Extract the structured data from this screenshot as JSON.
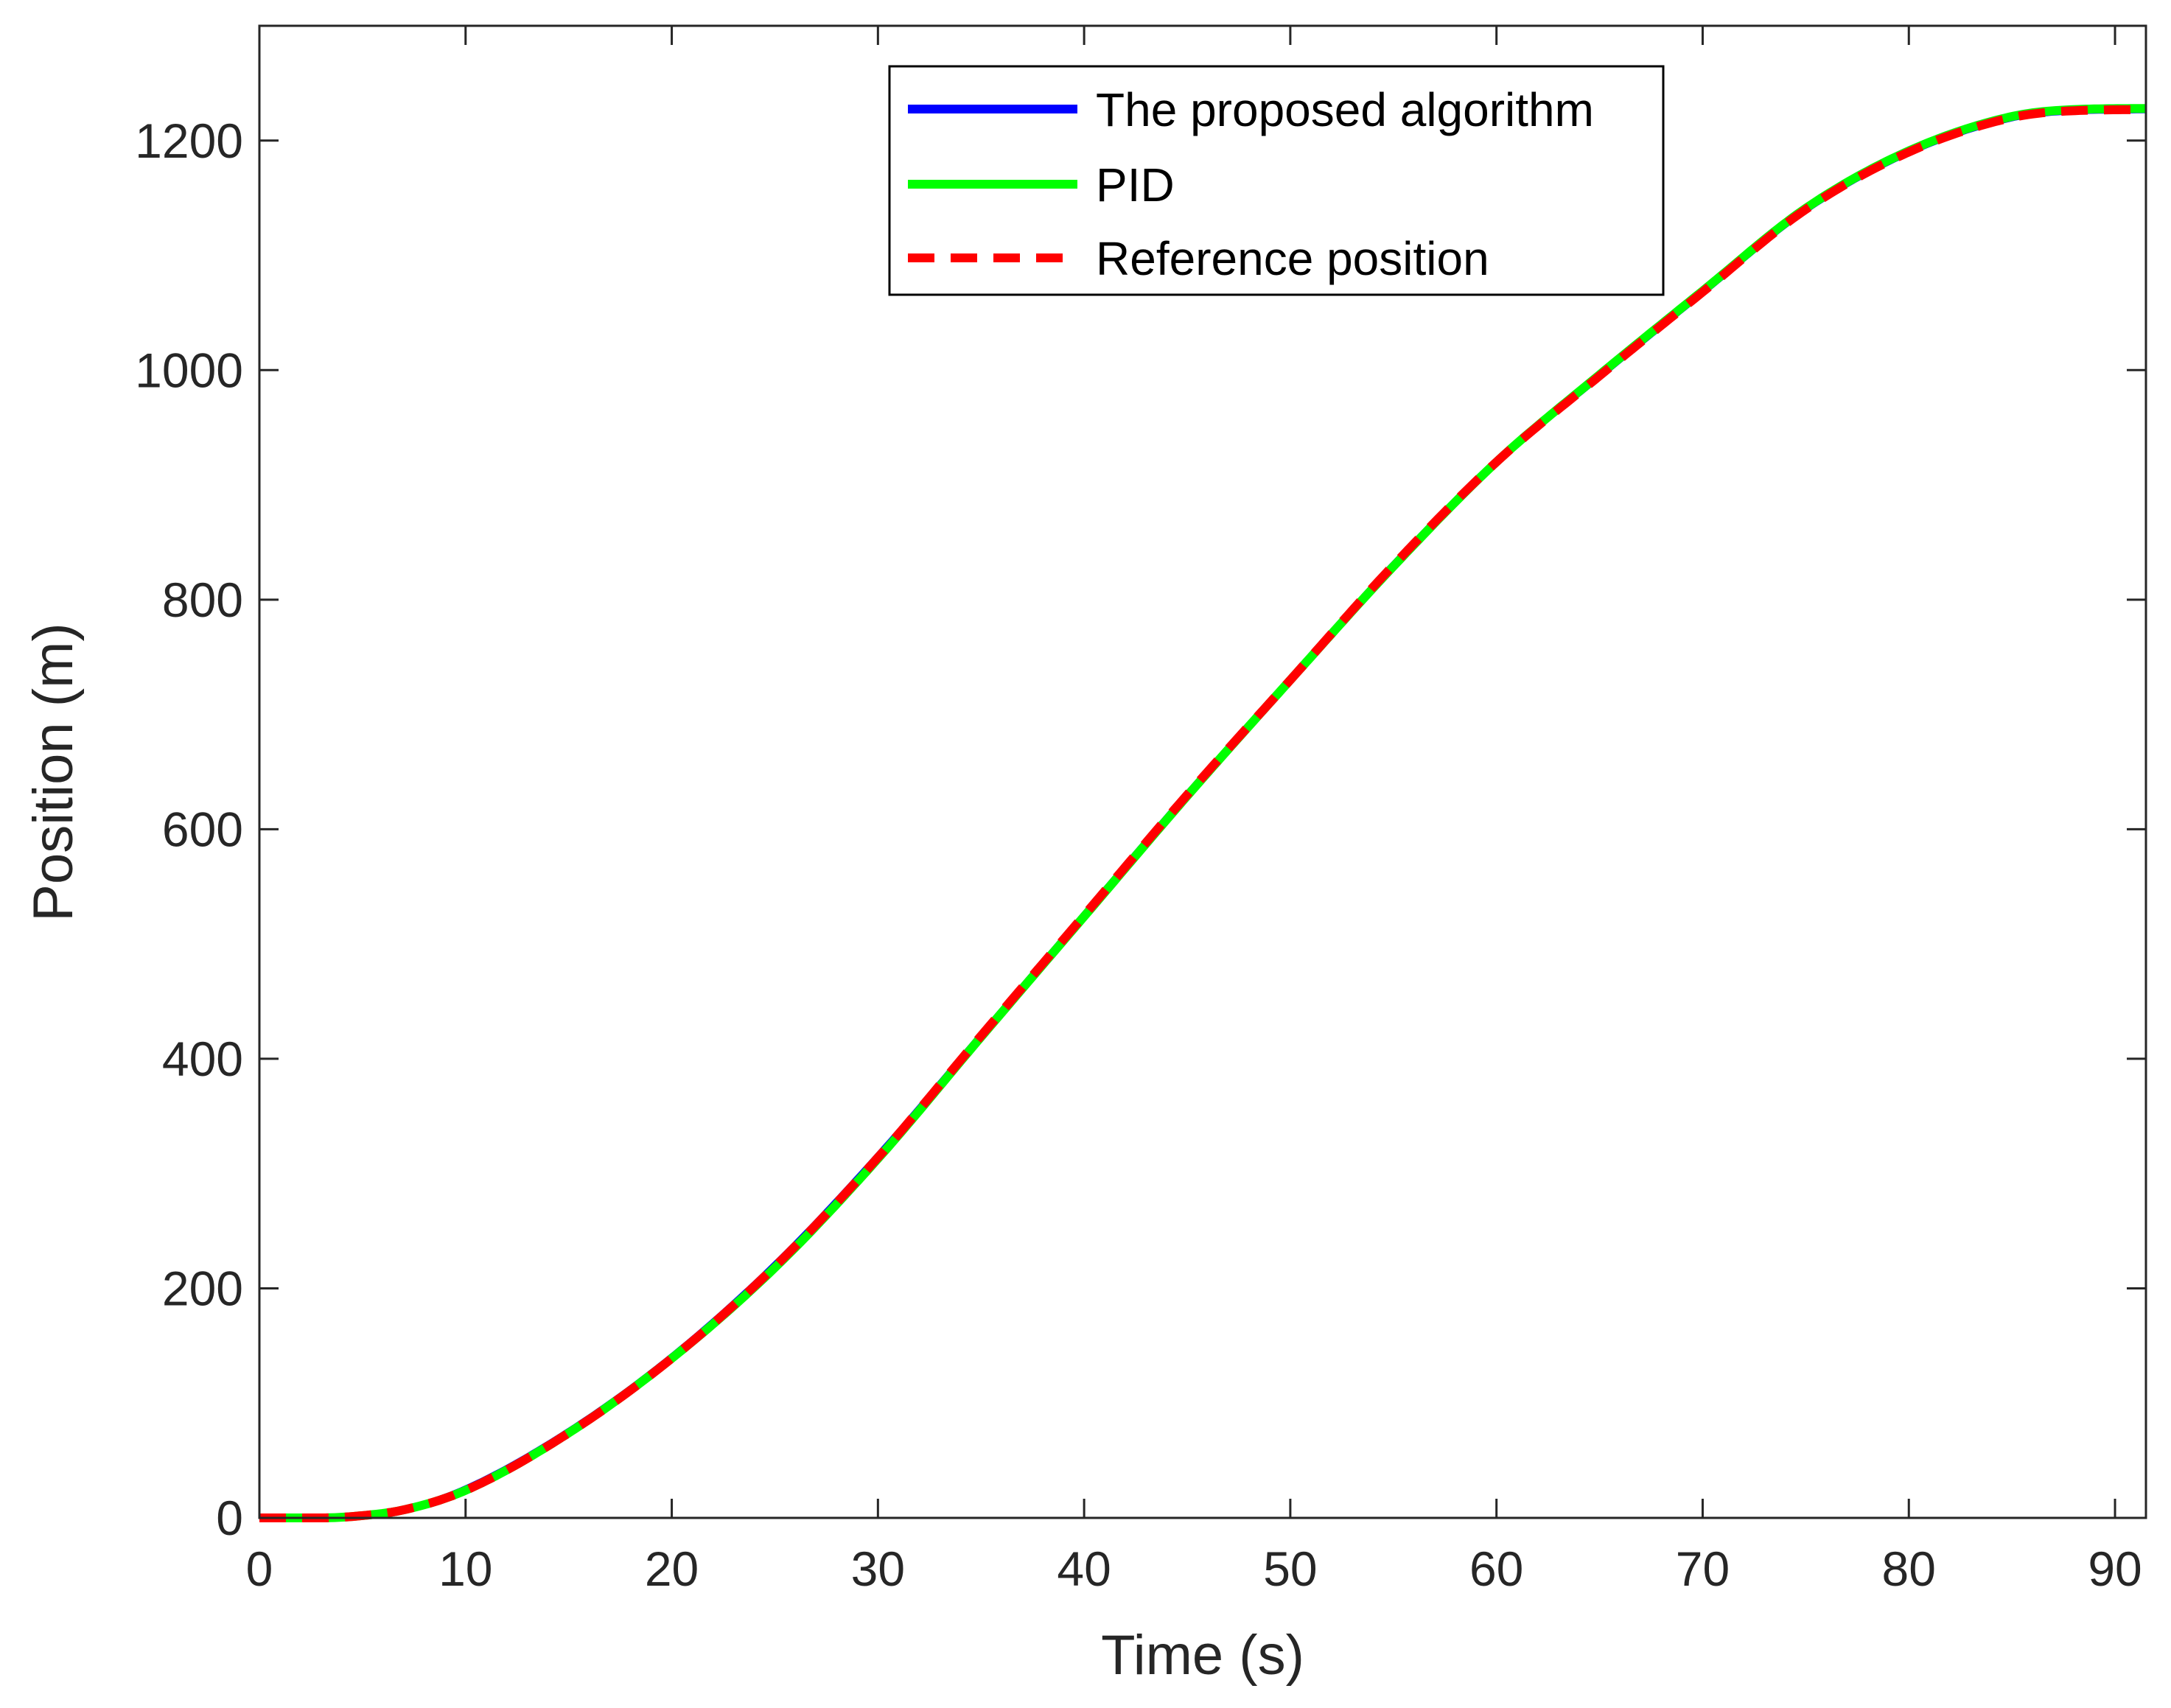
{
  "chart_data": {
    "type": "line",
    "title": "",
    "xlabel": "Time (s)",
    "ylabel": "Position (m)",
    "xlim": [
      0,
      91.5
    ],
    "ylim": [
      0,
      1300
    ],
    "xticks": [
      0,
      10,
      20,
      30,
      40,
      50,
      60,
      70,
      80,
      90
    ],
    "xtick_labels": [
      "0",
      "10",
      "20",
      "30",
      "40",
      "50",
      "60",
      "70",
      "80",
      "90"
    ],
    "yticks": [
      0,
      200,
      400,
      600,
      800,
      1000,
      1200
    ],
    "ytick_labels": [
      "0",
      "200",
      "400",
      "600",
      "800",
      "1000",
      "1200"
    ],
    "grid": false,
    "legend_position": "top-center",
    "x": [
      0,
      3,
      5,
      7,
      10,
      15,
      20,
      25,
      30,
      35,
      40,
      45,
      50,
      55,
      60,
      65,
      70,
      75,
      80,
      85,
      88,
      91.5
    ],
    "series": [
      {
        "name": "The proposed algorithm",
        "color": "#0000ff",
        "style": "solid",
        "values": [
          0,
          0,
          2,
          7,
          25,
          75,
          140,
          220,
          315,
          420,
          525,
          630,
          730,
          830,
          920,
          995,
          1068,
          1140,
          1190,
          1220,
          1226,
          1227
        ]
      },
      {
        "name": "PID",
        "color": "#00ff00",
        "style": "solid",
        "values": [
          0,
          0,
          2,
          7,
          24,
          74,
          139,
          218,
          313,
          419,
          524,
          629,
          730,
          829,
          920,
          996,
          1069,
          1141,
          1191,
          1221,
          1227,
          1228
        ]
      },
      {
        "name": "Reference position",
        "color": "#ff0000",
        "style": "dashed",
        "values": [
          0,
          0,
          2,
          7,
          24,
          74,
          139,
          219,
          314,
          420,
          525,
          630,
          730,
          830,
          920,
          995,
          1068,
          1140,
          1190,
          1220,
          1226,
          1227
        ]
      }
    ]
  }
}
